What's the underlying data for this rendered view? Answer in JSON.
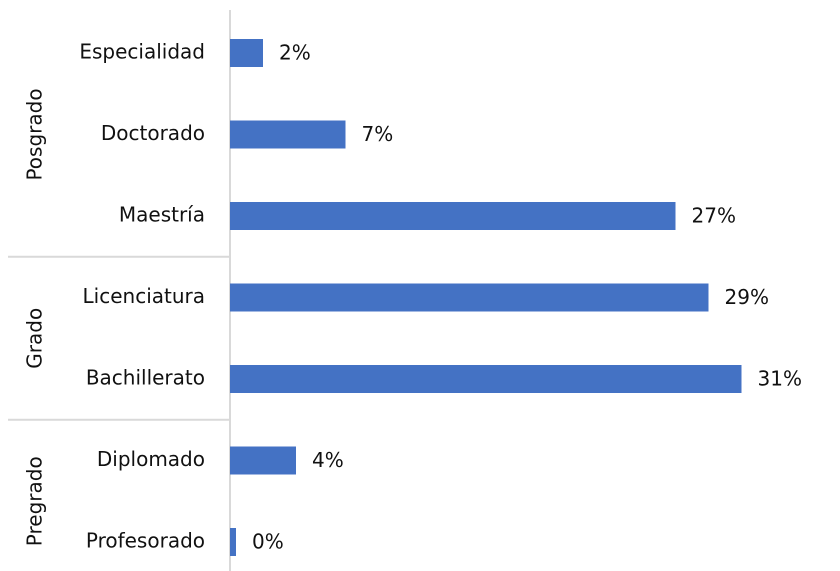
{
  "chart_data": {
    "type": "bar",
    "orientation": "horizontal",
    "bar_color": "#4472C4",
    "value_suffix": "%",
    "groups": [
      {
        "name": "Posgrado",
        "categories": [
          "Especialidad",
          "Doctorado",
          "Maestría"
        ],
        "values": [
          2,
          7,
          27
        ]
      },
      {
        "name": "Grado",
        "categories": [
          "Licenciatura",
          "Bachillerato"
        ],
        "values": [
          29,
          31
        ]
      },
      {
        "name": "Pregrado",
        "categories": [
          "Diplomado",
          "Profesorado"
        ],
        "values": [
          4,
          0
        ]
      }
    ],
    "categories": [
      "Especialidad",
      "Doctorado",
      "Maestría",
      "Licenciatura",
      "Bachillerato",
      "Diplomado",
      "Profesorado"
    ],
    "values": [
      2,
      7,
      27,
      29,
      31,
      4,
      0
    ],
    "value_labels": [
      "2%",
      "7%",
      "27%",
      "29%",
      "31%",
      "4%",
      "0%"
    ],
    "xlim": [
      0,
      31
    ],
    "grid": false,
    "legend": "none"
  }
}
